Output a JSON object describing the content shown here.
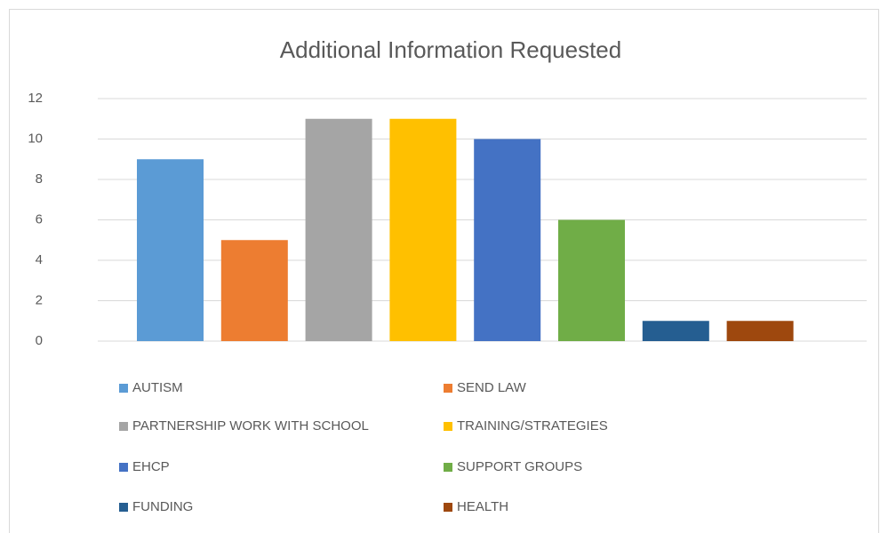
{
  "chart_data": {
    "type": "bar",
    "title": "Additional Information Requested",
    "categories": [
      "AUTISM",
      "SEND LAW",
      "PARTNERSHIP WORK WITH SCHOOL",
      "TRAINING/STRATEGIES",
      "EHCP",
      "SUPPORT GROUPS",
      "FUNDING",
      "HEALTH"
    ],
    "values": [
      9,
      5,
      11,
      11,
      10,
      6,
      1,
      1
    ],
    "colors": [
      "#5b9bd5",
      "#ed7d31",
      "#a5a5a5",
      "#ffc000",
      "#4472c4",
      "#70ad47",
      "#255e91",
      "#9e480e"
    ],
    "ylim": [
      0,
      12
    ],
    "yticks": [
      0,
      2,
      4,
      6,
      8,
      10,
      12
    ],
    "grid": true,
    "legend": "bottom"
  }
}
